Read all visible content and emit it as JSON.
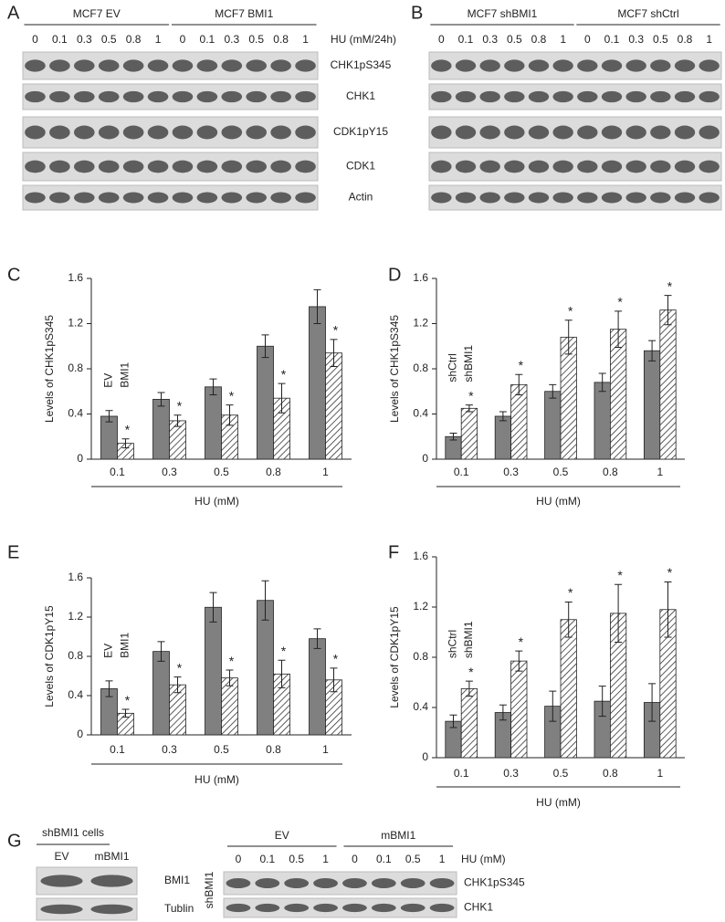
{
  "blot_panels": [
    {
      "letter": "A",
      "groups": [
        "MCF7 EV",
        "MCF7 BMI1"
      ],
      "doses": [
        "0",
        "0.1",
        "0.3",
        "0.5",
        "0.8",
        "1",
        "0",
        "0.1",
        "0.3",
        "0.5",
        "0.8",
        "1"
      ],
      "treatment": "HU (mM/24h)",
      "rows": [
        "CHK1pS345",
        "CHK1",
        "CDK1pY15",
        "CDK1",
        "Actin"
      ]
    },
    {
      "letter": "B",
      "groups": [
        "MCF7 shBMI1",
        "MCF7 shCtrl"
      ],
      "doses": [
        "0",
        "0.1",
        "0.3",
        "0.5",
        "0.8",
        "1",
        "0",
        "0.1",
        "0.3",
        "0.5",
        "0.8",
        "1"
      ]
    }
  ],
  "panel_g": {
    "letter": "G",
    "left": {
      "title": "shBMI1 cells",
      "lanes": [
        "EV",
        "mBMI1"
      ],
      "rows": [
        "BMI1",
        "Tublin"
      ]
    },
    "right": {
      "groups": [
        "EV",
        "mBMI1"
      ],
      "doses": [
        "0",
        "0.1",
        "0.5",
        "1",
        "0",
        "0.1",
        "0.5",
        "1"
      ],
      "treatment": "HU (mM)",
      "cell_label": "shBMI1",
      "rows": [
        "CHK1pS345",
        "CHK1"
      ]
    }
  },
  "chart_data": [
    {
      "type": "bar",
      "panel": "C",
      "x_label": "HU (mM)",
      "y_label": "Levels of CHK1pS345",
      "categories": [
        "0.1",
        "0.3",
        "0.5",
        "0.8",
        "1"
      ],
      "series": [
        {
          "name": "EV",
          "color": "#808080",
          "pattern": "solid",
          "values": [
            0.38,
            0.53,
            0.64,
            1.0,
            1.35
          ],
          "errors": [
            0.05,
            0.06,
            0.07,
            0.1,
            0.15
          ]
        },
        {
          "name": "BMI1",
          "color": "#ffffff",
          "pattern": "hatched",
          "values": [
            0.14,
            0.34,
            0.39,
            0.54,
            0.94
          ],
          "errors": [
            0.04,
            0.05,
            0.09,
            0.13,
            0.12
          ]
        }
      ],
      "significance_marker": "*",
      "ylim": [
        0,
        1.6
      ],
      "yticks": [
        0,
        0.4,
        0.8,
        1.2,
        1.6
      ]
    },
    {
      "type": "bar",
      "panel": "D",
      "x_label": "HU (mM)",
      "y_label": "Levels of CHK1pS345",
      "categories": [
        "0.1",
        "0.3",
        "0.5",
        "0.8",
        "1"
      ],
      "series": [
        {
          "name": "shCtrl",
          "color": "#808080",
          "pattern": "solid",
          "values": [
            0.2,
            0.38,
            0.6,
            0.68,
            0.96
          ],
          "errors": [
            0.03,
            0.04,
            0.06,
            0.08,
            0.09
          ]
        },
        {
          "name": "shBMI1",
          "color": "#ffffff",
          "pattern": "hatched",
          "values": [
            0.45,
            0.66,
            1.08,
            1.15,
            1.32
          ],
          "errors": [
            0.03,
            0.09,
            0.15,
            0.16,
            0.13
          ]
        }
      ],
      "significance_marker": "*",
      "ylim": [
        0,
        1.6
      ],
      "yticks": [
        0,
        0.4,
        0.8,
        1.2,
        1.6
      ]
    },
    {
      "type": "bar",
      "panel": "E",
      "x_label": "HU (mM)",
      "y_label": "Levels of CDK1pY15",
      "categories": [
        "0.1",
        "0.3",
        "0.5",
        "0.8",
        "1"
      ],
      "series": [
        {
          "name": "EV",
          "color": "#808080",
          "pattern": "solid",
          "values": [
            0.47,
            0.85,
            1.3,
            1.37,
            0.98
          ],
          "errors": [
            0.08,
            0.1,
            0.15,
            0.2,
            0.1
          ]
        },
        {
          "name": "BMI1",
          "color": "#ffffff",
          "pattern": "hatched",
          "values": [
            0.22,
            0.51,
            0.58,
            0.62,
            0.56
          ],
          "errors": [
            0.04,
            0.08,
            0.08,
            0.14,
            0.12
          ]
        }
      ],
      "significance_marker": "*",
      "ylim": [
        0,
        1.6
      ],
      "yticks": [
        0,
        0.4,
        0.8,
        1.2,
        1.6
      ]
    },
    {
      "type": "bar",
      "panel": "F",
      "x_label": "HU (mM)",
      "y_label": "Levels of CDK1pY15",
      "categories": [
        "0.1",
        "0.3",
        "0.5",
        "0.8",
        "1"
      ],
      "series": [
        {
          "name": "shCtrl",
          "color": "#808080",
          "pattern": "solid",
          "values": [
            0.29,
            0.36,
            0.41,
            0.45,
            0.44
          ],
          "errors": [
            0.05,
            0.06,
            0.12,
            0.12,
            0.15
          ]
        },
        {
          "name": "shBMI1",
          "color": "#ffffff",
          "pattern": "hatched",
          "values": [
            0.55,
            0.77,
            1.1,
            1.15,
            1.18
          ],
          "errors": [
            0.06,
            0.08,
            0.14,
            0.23,
            0.22
          ]
        }
      ],
      "significance_marker": "*",
      "ylim": [
        0,
        1.6
      ],
      "yticks": [
        0,
        0.4,
        0.8,
        1.2,
        1.6
      ]
    }
  ]
}
